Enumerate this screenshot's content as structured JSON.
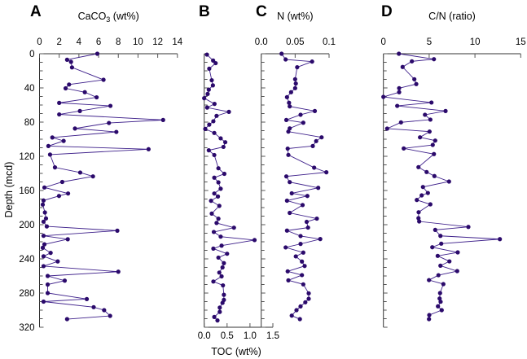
{
  "chart_data": {
    "type": "line",
    "ylabel": "Depth (mcd)",
    "ylim": [
      0,
      320
    ],
    "yticks": [
      0,
      40,
      80,
      120,
      160,
      200,
      240,
      280,
      320
    ],
    "color": "#3d1f8a",
    "panels": [
      {
        "id": "A",
        "letter": "A",
        "xlabel_main": "CaCO",
        "xlabel_sub": "3",
        "xlabel_tail": " (wt%)",
        "xaxis_position": "top",
        "xlim": [
          0,
          14
        ],
        "xticks": [
          "0",
          "2",
          "4",
          "6",
          "8",
          "10",
          "12",
          "14"
        ],
        "xtick_values": [
          0,
          2,
          4,
          6,
          8,
          10,
          12,
          14
        ],
        "depth": [
          0,
          7,
          9.5,
          16,
          30.5,
          36,
          40.5,
          45,
          51,
          57.5,
          61,
          67,
          71,
          77.5,
          81,
          87.5,
          91.5,
          98,
          102,
          108,
          111.7,
          118,
          133,
          139,
          143.5,
          150,
          156.5,
          163.5,
          166.4,
          171.7,
          176.5,
          185.7,
          192.7,
          196.5,
          202,
          207,
          213,
          217,
          223,
          227,
          233,
          237,
          243,
          248.5,
          255,
          260,
          265.5,
          270,
          280,
          287,
          290,
          296.5,
          300,
          306.7,
          310.5
        ],
        "values": [
          5.87,
          2.8,
          3.2,
          3.3,
          6.5,
          3.0,
          2.65,
          4.6,
          5.8,
          2.0,
          7.2,
          4.1,
          2.0,
          12.55,
          7.05,
          3.6,
          7.8,
          1.3,
          2.45,
          0.9,
          11.07,
          1.07,
          1.57,
          4.13,
          5.43,
          2.31,
          0.5,
          2.9,
          1.98,
          0.41,
          0.33,
          0.55,
          0.66,
          0.41,
          0.74,
          7.9,
          0.41,
          2.87,
          0.5,
          0.33,
          1.13,
          0.41,
          1.85,
          0.41,
          8.0,
          0.83,
          2.56,
          0.83,
          0.83,
          4.8,
          0.41,
          5.5,
          6.56,
          7.17,
          2.8
        ]
      },
      {
        "id": "B",
        "letter": "B",
        "xlabel_main": "TOC (wt%)",
        "xlabel_sub": "",
        "xlabel_tail": "",
        "xaxis_position": "bottom",
        "xlim": [
          0,
          1.5
        ],
        "xticks": [
          "0.0",
          "0.5",
          "1.0",
          "1.5"
        ],
        "xtick_values": [
          0,
          0.5,
          1.0,
          1.5
        ],
        "depth": [
          1,
          8,
          11,
          17.5,
          31,
          37,
          42,
          47,
          52,
          58.7,
          63,
          68,
          72.7,
          79,
          83,
          88,
          92.7,
          99,
          103.5,
          109,
          113,
          118.5,
          134,
          140.5,
          145,
          150.5,
          158,
          163.5,
          167,
          172,
          178,
          187,
          193,
          198,
          203.5,
          208.5,
          214,
          218,
          224.5,
          228,
          234,
          238.5,
          245,
          250,
          256,
          260.5,
          266.5,
          271,
          282,
          288,
          291.5,
          297,
          302,
          308,
          312
        ],
        "values": [
          0.06,
          0.195,
          0.25,
          0.11,
          0.165,
          0.19,
          0.1,
          0.076,
          0.0,
          0.225,
          0.065,
          0.54,
          0.27,
          0.2,
          0.11,
          0.023,
          0.22,
          0.36,
          0.46,
          0.42,
          0.1,
          0.22,
          0.31,
          0.44,
          0.22,
          0.31,
          0.36,
          0.22,
          0.3,
          0.15,
          0.33,
          0.165,
          0.31,
          0.27,
          0.65,
          0.21,
          0.36,
          1.1,
          0.38,
          0.2,
          0.5,
          0.31,
          0.43,
          0.4,
          0.33,
          0.38,
          0.2,
          0.41,
          0.43,
          0.43,
          0.4,
          0.34,
          0.34,
          0.22,
          0.29
        ]
      },
      {
        "id": "C",
        "letter": "C",
        "xlabel_main": "N (wt%)",
        "xlabel_sub": "",
        "xlabel_tail": "",
        "xaxis_position": "top",
        "xlim": [
          0,
          0.1
        ],
        "xticks": [
          "0.0",
          "0.05",
          "0.1"
        ],
        "xtick_values": [
          0,
          0.05,
          0.1
        ],
        "depth": [
          0,
          6.7,
          9.2,
          15.8,
          29.8,
          34.9,
          40.3,
          45,
          50.8,
          57.4,
          61.6,
          67,
          71.4,
          77.5,
          80.7,
          87.3,
          91.1,
          97.8,
          102.2,
          108,
          111,
          118.4,
          133.3,
          138.7,
          143.5,
          150.2,
          156.9,
          163.3,
          166.4,
          171.9,
          177,
          186.2,
          192.9,
          196.7,
          203.4,
          206.9,
          213.3,
          216.8,
          222.5,
          226.6,
          232.6,
          237.1,
          243.1,
          248.3,
          254.6,
          259,
          265.1,
          269.8,
          280.3,
          286.7,
          290.8,
          295.6,
          300,
          306.4,
          310.5
        ],
        "values": [
          0.03,
          0.036,
          0.075,
          0.053,
          0.05,
          0.051,
          0.05,
          0.044,
          0.038,
          0.041,
          0.042,
          0.079,
          0.058,
          0.037,
          0.062,
          0.042,
          0.04,
          0.089,
          0.081,
          0.076,
          0.039,
          0.04,
          0.078,
          0.096,
          0.037,
          0.042,
          0.084,
          0.045,
          0.068,
          0.038,
          0.061,
          0.042,
          0.082,
          0.067,
          0.069,
          0.038,
          0.058,
          0.087,
          0.058,
          0.036,
          0.062,
          0.051,
          0.06,
          0.064,
          0.039,
          0.06,
          0.04,
          0.062,
          0.07,
          0.07,
          0.065,
          0.058,
          0.052,
          0.045,
          0.057
        ]
      },
      {
        "id": "D",
        "letter": "D",
        "xlabel_main": "C/N (ratio)",
        "xlabel_sub": "",
        "xlabel_tail": "",
        "xaxis_position": "top",
        "xlim": [
          0,
          15
        ],
        "xticks": [
          "0",
          "5",
          "10",
          "15"
        ],
        "xtick_values": [
          0,
          5,
          10,
          15
        ],
        "depth": [
          0,
          6.4,
          8.9,
          15.5,
          29.8,
          35.5,
          40.3,
          45,
          50.5,
          57.1,
          61,
          67,
          71.4,
          77.1,
          80.3,
          87.6,
          91.1,
          97.8,
          101.6,
          106.7,
          110.8,
          117.4,
          132.7,
          138.4,
          143.1,
          149.5,
          155.9,
          162.9,
          165.7,
          171.1,
          176.2,
          185.4,
          192.4,
          196.2,
          202.6,
          206.1,
          213.1,
          216.9,
          222.2,
          226.4,
          232.4,
          236.5,
          242.9,
          248,
          254.3,
          259.1,
          264.8,
          269.5,
          280,
          286.4,
          290.2,
          295.5,
          300,
          305.7,
          310.5
        ],
        "values": [
          1.69,
          5.52,
          3.11,
          2.1,
          3.38,
          3.59,
          1.72,
          1.72,
          0.0,
          5.25,
          1.51,
          6.79,
          4.54,
          5.13,
          1.92,
          0.41,
          5.04,
          4.0,
          5.66,
          5.39,
          2.22,
          5.52,
          3.83,
          4.72,
          5.57,
          7.17,
          4.32,
          4.86,
          4.18,
          3.65,
          5.13,
          3.85,
          3.83,
          3.91,
          9.28,
          5.66,
          6.23,
          12.72,
          6.32,
          5.34,
          8.12,
          5.93,
          7.21,
          6.23,
          8.06,
          6.01,
          4.98,
          6.55,
          6.19,
          6.14,
          6.25,
          5.96,
          6.37,
          5.01,
          4.98
        ]
      }
    ]
  }
}
